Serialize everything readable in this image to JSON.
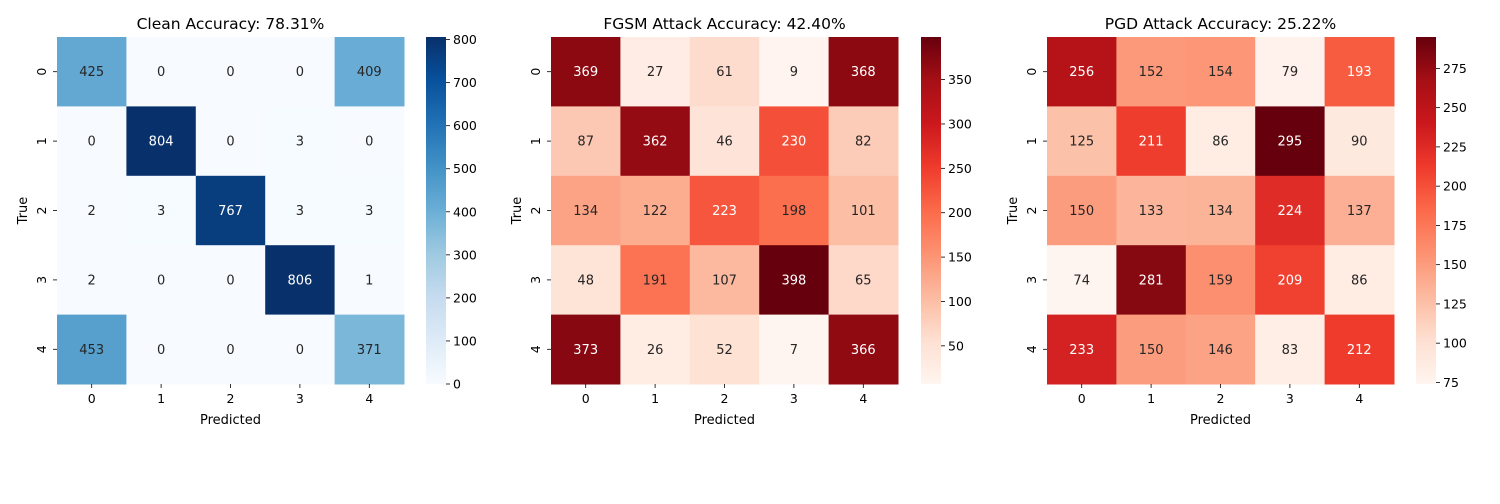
{
  "chart_data": [
    {
      "type": "heatmap",
      "title": "Clean Accuracy: 78.31%",
      "xlabel": "Predicted",
      "ylabel": "True",
      "x_categories": [
        "0",
        "1",
        "2",
        "3",
        "4"
      ],
      "y_categories": [
        "0",
        "1",
        "2",
        "3",
        "4"
      ],
      "values": [
        [
          425,
          0,
          0,
          0,
          409
        ],
        [
          0,
          804,
          0,
          3,
          0
        ],
        [
          2,
          3,
          767,
          3,
          3
        ],
        [
          2,
          0,
          0,
          806,
          1
        ],
        [
          453,
          0,
          0,
          0,
          371
        ]
      ],
      "colormap": "Blues",
      "colors": [
        "#f7fbff",
        "#deebf7",
        "#c6dbef",
        "#9ecae1",
        "#6baed6",
        "#4292c6",
        "#2171b5",
        "#08519c",
        "#08306b"
      ],
      "vmin": 0,
      "vmax": 806,
      "colorbar_ticks": [
        "0",
        "100",
        "200",
        "300",
        "400",
        "500",
        "600",
        "700",
        "800"
      ]
    },
    {
      "type": "heatmap",
      "title": "FGSM Attack Accuracy: 42.40%",
      "xlabel": "Predicted",
      "ylabel": "True",
      "x_categories": [
        "0",
        "1",
        "2",
        "3",
        "4"
      ],
      "y_categories": [
        "0",
        "1",
        "2",
        "3",
        "4"
      ],
      "values": [
        [
          369,
          27,
          61,
          9,
          368
        ],
        [
          87,
          362,
          46,
          230,
          82
        ],
        [
          134,
          122,
          223,
          198,
          101
        ],
        [
          48,
          191,
          107,
          398,
          65
        ],
        [
          373,
          26,
          52,
          7,
          366
        ]
      ],
      "colormap": "Reds",
      "colors": [
        "#fff5f0",
        "#fee0d2",
        "#fcbba1",
        "#fc9272",
        "#fb6a4a",
        "#ef3b2c",
        "#cb181d",
        "#a50f15",
        "#67000d"
      ],
      "vmin": 7,
      "vmax": 398,
      "colorbar_ticks": [
        "50",
        "100",
        "150",
        "200",
        "250",
        "300",
        "350"
      ]
    },
    {
      "type": "heatmap",
      "title": "PGD Attack Accuracy: 25.22%",
      "xlabel": "Predicted",
      "ylabel": "True",
      "x_categories": [
        "0",
        "1",
        "2",
        "3",
        "4"
      ],
      "y_categories": [
        "0",
        "1",
        "2",
        "3",
        "4"
      ],
      "values": [
        [
          256,
          152,
          154,
          79,
          193
        ],
        [
          125,
          211,
          86,
          295,
          90
        ],
        [
          150,
          133,
          134,
          224,
          137
        ],
        [
          74,
          281,
          159,
          209,
          86
        ],
        [
          233,
          150,
          146,
          83,
          212
        ]
      ],
      "colormap": "Reds",
      "colors": [
        "#fff5f0",
        "#fee0d2",
        "#fcbba1",
        "#fc9272",
        "#fb6a4a",
        "#ef3b2c",
        "#cb181d",
        "#a50f15",
        "#67000d"
      ],
      "vmin": 74,
      "vmax": 295,
      "colorbar_ticks": [
        "75",
        "100",
        "125",
        "150",
        "175",
        "200",
        "225",
        "250",
        "275"
      ]
    }
  ]
}
